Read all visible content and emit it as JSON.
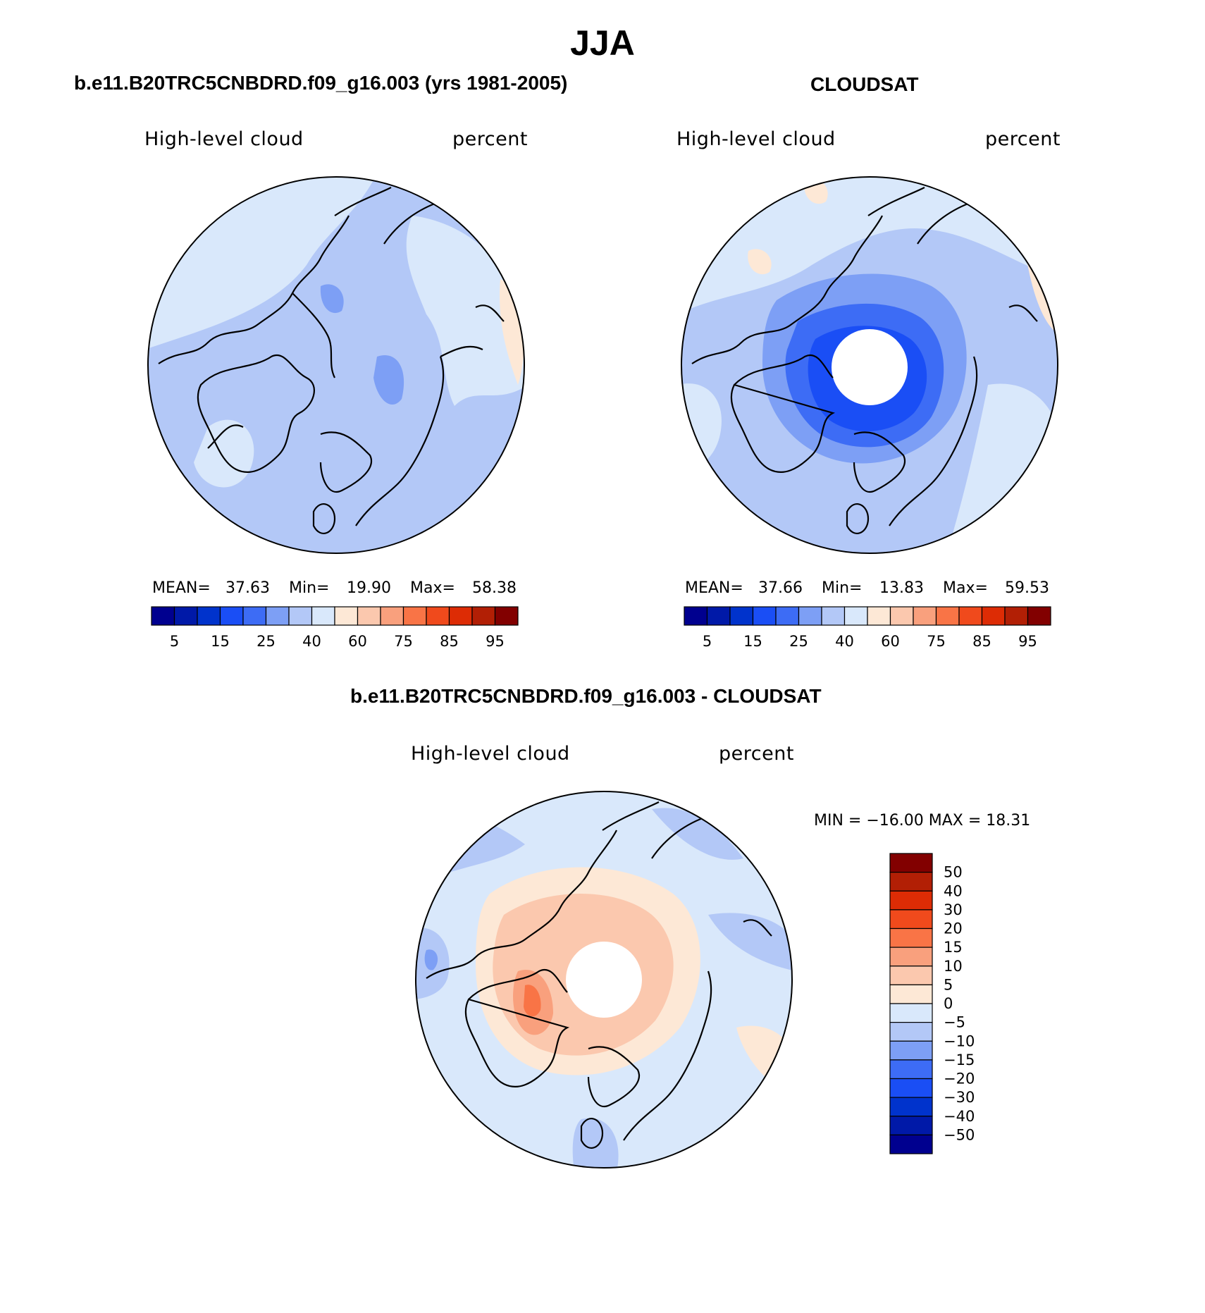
{
  "title": "JJA",
  "panels": [
    {
      "id": "model",
      "title": "b.e11.B20TRC5CNBDRD.f09_g16.003 (yrs 1981-2005)",
      "variable": "High-level cloud",
      "units": "percent",
      "stats": {
        "mean_label": "MEAN=",
        "mean": "37.63",
        "min_label": "Min=",
        "min": "19.90",
        "max_label": "Max=",
        "max": "58.38"
      },
      "colorbar": {
        "colors": [
          "#00008f",
          "#0019a8",
          "#0033cc",
          "#1a4ef5",
          "#3d6cf5",
          "#7d9ff5",
          "#b3c8f7",
          "#d9e8fb",
          "#fde8d6",
          "#fbc8ae",
          "#f9a07d",
          "#f97446",
          "#f04a1c",
          "#dd2c05",
          "#b21f05",
          "#820000"
        ],
        "tick_labels": [
          "5",
          "15",
          "25",
          "40",
          "60",
          "75",
          "85",
          "95"
        ]
      }
    },
    {
      "id": "obs",
      "title": "CLOUDSAT",
      "variable": "High-level cloud",
      "units": "percent",
      "stats": {
        "mean_label": "MEAN=",
        "mean": "37.66",
        "min_label": "Min=",
        "min": "13.83",
        "max_label": "Max=",
        "max": "59.53"
      },
      "colorbar": {
        "colors": [
          "#00008f",
          "#0019a8",
          "#0033cc",
          "#1a4ef5",
          "#3d6cf5",
          "#7d9ff5",
          "#b3c8f7",
          "#d9e8fb",
          "#fde8d6",
          "#fbc8ae",
          "#f9a07d",
          "#f97446",
          "#f04a1c",
          "#dd2c05",
          "#b21f05",
          "#820000"
        ],
        "tick_labels": [
          "5",
          "15",
          "25",
          "40",
          "60",
          "75",
          "85",
          "95"
        ]
      }
    },
    {
      "id": "diff",
      "title": "b.e11.B20TRC5CNBDRD.f09_g16.003 - CLOUDSAT",
      "variable": "High-level cloud",
      "units": "percent",
      "stats_text": "MIN = −16.00 MAX =   18.31",
      "colorbar": {
        "colors": [
          "#820000",
          "#b21f05",
          "#dd2c05",
          "#f04a1c",
          "#f97446",
          "#f9a07d",
          "#fbc8ae",
          "#fde8d6",
          "#d9e8fb",
          "#b3c8f7",
          "#7d9ff5",
          "#3d6cf5",
          "#1a4ef5",
          "#0033cc",
          "#0019a8",
          "#00008f"
        ],
        "tick_labels": [
          "50",
          "40",
          "30",
          "20",
          "15",
          "10",
          "5",
          "0",
          "−5",
          "−10",
          "−15",
          "−20",
          "−30",
          "−40",
          "−50"
        ]
      }
    }
  ]
}
